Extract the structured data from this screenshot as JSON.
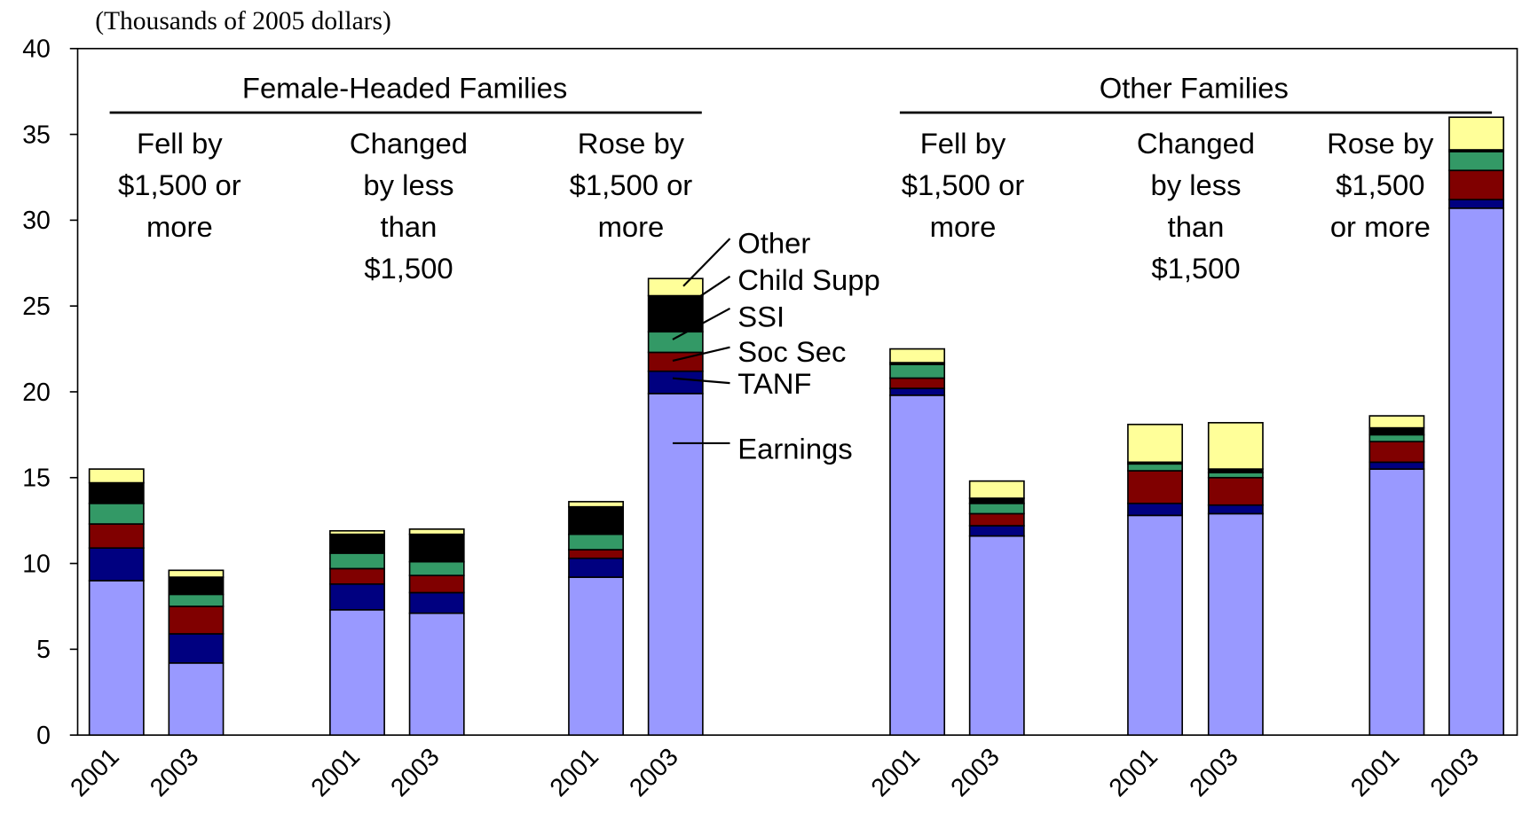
{
  "chart_data": {
    "type": "stacked_bar",
    "unit_label": "(Thousands of 2005 dollars)",
    "categories": [
      "2001",
      "2003",
      "2001",
      "2003",
      "2001",
      "2003",
      "2001",
      "2003",
      "2001",
      "2003",
      "2001",
      "2003"
    ],
    "groups": [
      "Female-Headed Families",
      "Other Families"
    ],
    "subgroups": [
      [
        "Fell by",
        "$1,500 or",
        "more"
      ],
      [
        "Changed",
        "by less",
        "than",
        "$1,500"
      ],
      [
        "Rose by",
        "$1,500 or",
        "more"
      ],
      [
        "Fell by",
        "$1,500 or",
        "more"
      ],
      [
        "Changed",
        "by less",
        "than",
        "$1,500"
      ],
      [
        "Rose by",
        "$1,500",
        "or more"
      ]
    ],
    "series": [
      {
        "name": "Earnings",
        "color": "#9999ff",
        "values": [
          9.0,
          4.2,
          7.3,
          7.1,
          9.2,
          19.9,
          19.8,
          11.6,
          12.8,
          12.9,
          15.5,
          30.7
        ]
      },
      {
        "name": "TANF",
        "color": "#000080",
        "values": [
          1.9,
          1.7,
          1.5,
          1.2,
          1.1,
          1.3,
          0.4,
          0.6,
          0.7,
          0.5,
          0.4,
          0.5
        ]
      },
      {
        "name": "Soc Sec",
        "color": "#800000",
        "values": [
          1.4,
          1.6,
          0.9,
          1.0,
          0.5,
          1.1,
          0.6,
          0.7,
          1.9,
          1.6,
          1.2,
          1.7
        ]
      },
      {
        "name": "SSI",
        "color": "#339966",
        "values": [
          1.2,
          0.7,
          0.9,
          0.8,
          0.9,
          1.2,
          0.8,
          0.6,
          0.4,
          0.3,
          0.4,
          1.1
        ]
      },
      {
        "name": "Child Supp",
        "color": "#000000",
        "values": [
          1.2,
          1.0,
          1.1,
          1.6,
          1.6,
          2.1,
          0.1,
          0.3,
          0.1,
          0.2,
          0.4,
          0.1
        ]
      },
      {
        "name": "Other",
        "color": "#ffff99",
        "values": [
          0.8,
          0.4,
          0.2,
          0.3,
          0.3,
          1.0,
          0.8,
          1.0,
          2.2,
          2.7,
          0.7,
          1.9
        ]
      }
    ],
    "ylim": [
      0,
      40
    ],
    "yticks": [
      0,
      5,
      10,
      15,
      20,
      25,
      30,
      35,
      40
    ],
    "grid": false
  }
}
